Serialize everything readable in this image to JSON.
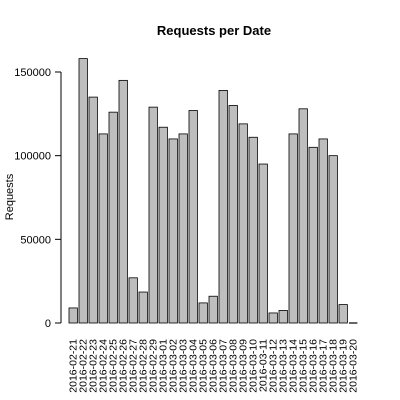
{
  "chart_data": {
    "type": "bar",
    "title": "Requests per Date",
    "xlabel": "",
    "ylabel": "Requests",
    "ylim": [
      0,
      160000
    ],
    "yticks": [
      0,
      50000,
      100000,
      150000
    ],
    "ytick_labels": [
      "0",
      "50000",
      "100000",
      "150000"
    ],
    "categories": [
      "2016-02-21",
      "2016-02-22",
      "2016-02-23",
      "2016-02-24",
      "2016-02-25",
      "2016-02-26",
      "2016-02-27",
      "2016-02-28",
      "2016-02-29",
      "2016-03-01",
      "2016-03-02",
      "2016-03-03",
      "2016-03-04",
      "2016-03-05",
      "2016-03-06",
      "2016-03-07",
      "2016-03-08",
      "2016-03-09",
      "2016-03-10",
      "2016-03-11",
      "2016-03-12",
      "2016-03-13",
      "2016-03-14",
      "2016-03-15",
      "2016-03-16",
      "2016-03-17",
      "2016-03-18",
      "2016-03-19",
      "2016-03-20"
    ],
    "values": [
      9000,
      158000,
      135000,
      113000,
      126000,
      145000,
      27000,
      18500,
      129000,
      117000,
      110000,
      113000,
      127000,
      12000,
      16000,
      139000,
      130000,
      119000,
      111000,
      95000,
      6000,
      7500,
      113000,
      128000,
      105000,
      110000,
      100000,
      11000,
      0
    ],
    "colors": {
      "bar_fill": "#bebebe",
      "bar_stroke": "#000000",
      "background": "#ffffff"
    }
  }
}
